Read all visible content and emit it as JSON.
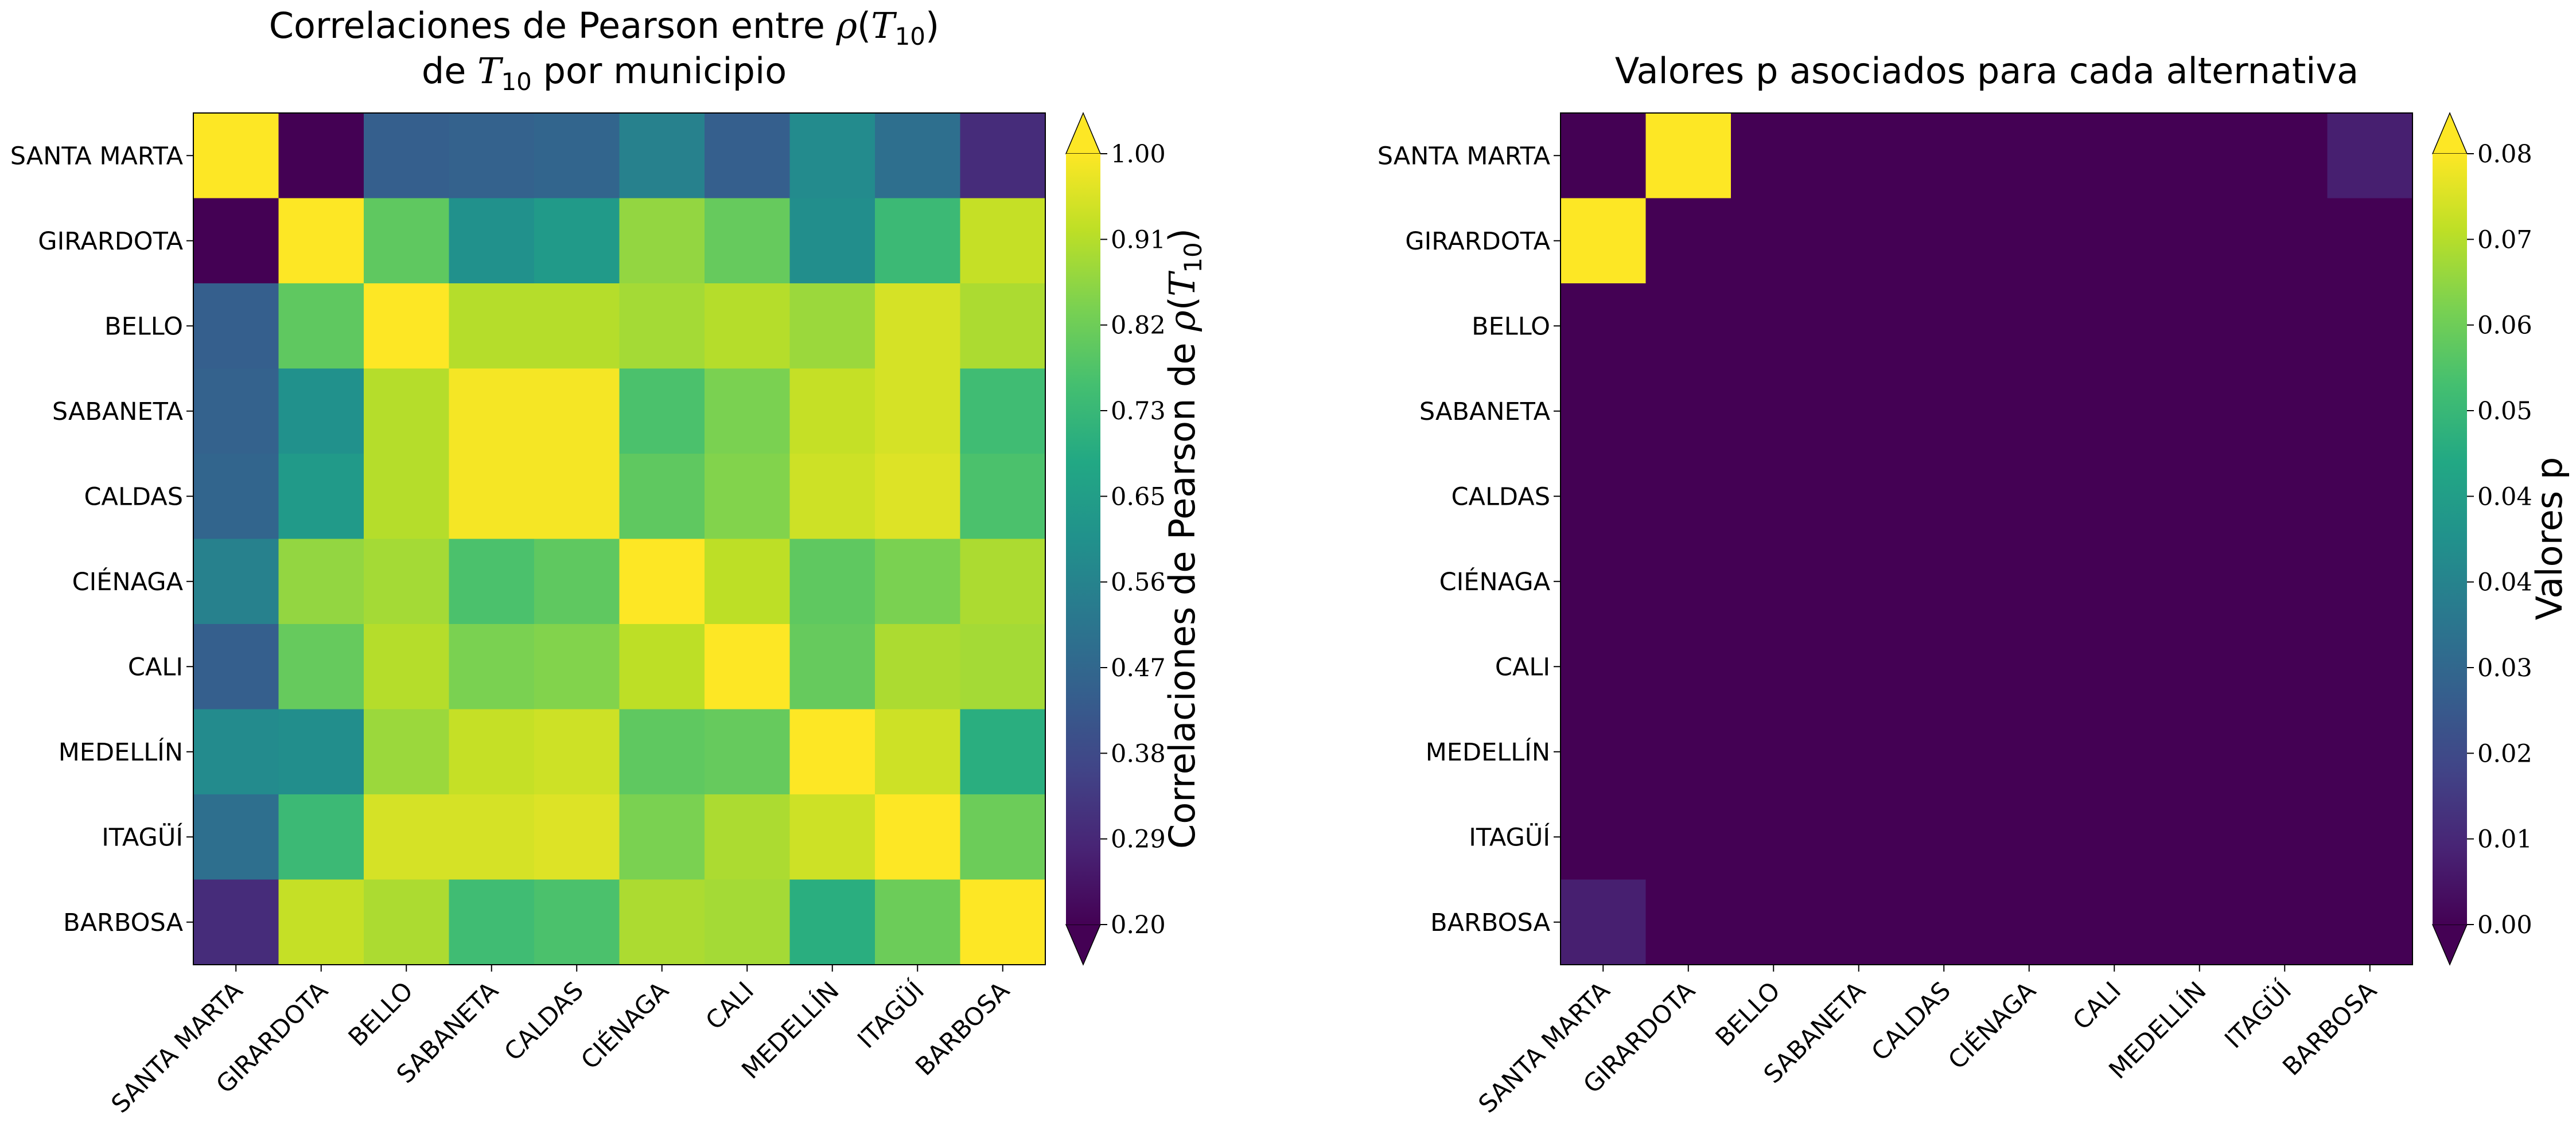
{
  "chart_data": [
    {
      "type": "heatmap",
      "title": {
        "line1_text": "Correlaciones de Pearson entre ",
        "line1_math_symbol": "ρ",
        "line1_math_open": "(",
        "line1_math_var": "T",
        "line1_math_sub": "10",
        "line1_math_close": ")",
        "line2_pre": "de ",
        "line2_math_var": "T",
        "line2_math_sub": "10",
        "line2_post": " por municipio"
      },
      "rows": [
        "SANTA MARTA",
        "GIRARDOTA",
        "BELLO",
        "SABANETA",
        "CALDAS",
        "CIÉNAGA",
        "CALI",
        "MEDELLÍN",
        "ITAGÜÍ",
        "BARBOSA"
      ],
      "columns": [
        "SANTA MARTA",
        "GIRARDOTA",
        "BELLO",
        "SABANETA",
        "CALDAS",
        "CIÉNAGA",
        "CALI",
        "MEDELLÍN",
        "ITAGÜÍ",
        "BARBOSA"
      ],
      "values": [
        [
          1.0,
          0.2,
          0.44,
          0.45,
          0.46,
          0.55,
          0.44,
          0.58,
          0.49,
          0.3
        ],
        [
          0.2,
          1.0,
          0.8,
          0.6,
          0.63,
          0.87,
          0.81,
          0.59,
          0.74,
          0.93
        ],
        [
          0.44,
          0.8,
          1.0,
          0.91,
          0.91,
          0.89,
          0.91,
          0.88,
          0.95,
          0.9
        ],
        [
          0.45,
          0.6,
          0.91,
          0.99,
          0.99,
          0.77,
          0.84,
          0.93,
          0.95,
          0.75
        ],
        [
          0.46,
          0.63,
          0.91,
          0.99,
          0.99,
          0.8,
          0.85,
          0.94,
          0.96,
          0.77
        ],
        [
          0.55,
          0.87,
          0.89,
          0.77,
          0.8,
          1.0,
          0.92,
          0.8,
          0.84,
          0.9
        ],
        [
          0.44,
          0.81,
          0.91,
          0.84,
          0.85,
          0.92,
          1.0,
          0.81,
          0.9,
          0.89
        ],
        [
          0.58,
          0.59,
          0.88,
          0.93,
          0.94,
          0.8,
          0.81,
          1.0,
          0.94,
          0.7
        ],
        [
          0.49,
          0.74,
          0.95,
          0.95,
          0.96,
          0.84,
          0.9,
          0.94,
          1.0,
          0.82
        ],
        [
          0.3,
          0.93,
          0.9,
          0.75,
          0.77,
          0.9,
          0.89,
          0.7,
          0.82,
          1.0
        ]
      ],
      "colormap": "viridis",
      "vmin": 0.2,
      "vmax": 1.0,
      "colorbar": {
        "ticks": [
          "1.00",
          "0.91",
          "0.82",
          "0.73",
          "0.65",
          "0.56",
          "0.47",
          "0.38",
          "0.29",
          "0.20"
        ],
        "label_pre": "Correlaciones de Pearson de ",
        "label_math_symbol": "ρ",
        "label_math_open": "(",
        "label_math_var": "T",
        "label_math_sub": "10",
        "label_math_close": ")",
        "extend": "both"
      }
    },
    {
      "type": "heatmap",
      "title": "Valores p asociados para cada alternativa",
      "rows": [
        "SANTA MARTA",
        "GIRARDOTA",
        "BELLO",
        "SABANETA",
        "CALDAS",
        "CIÉNAGA",
        "CALI",
        "MEDELLÍN",
        "ITAGÜÍ",
        "BARBOSA"
      ],
      "columns": [
        "SANTA MARTA",
        "GIRARDOTA",
        "BELLO",
        "SABANETA",
        "CALDAS",
        "CIÉNAGA",
        "CALI",
        "MEDELLÍN",
        "ITAGÜÍ",
        "BARBOSA"
      ],
      "values": [
        [
          0.0,
          0.082,
          0.0,
          0.0,
          0.0,
          0.0,
          0.0,
          0.0,
          0.0,
          0.007
        ],
        [
          0.082,
          0.0,
          0.0,
          0.0,
          0.0,
          0.0,
          0.0,
          0.0,
          0.0,
          0.0
        ],
        [
          0.0,
          0.0,
          0.0,
          0.0,
          0.0,
          0.0,
          0.0,
          0.0,
          0.0,
          0.0
        ],
        [
          0.0,
          0.0,
          0.0,
          0.0,
          0.0,
          0.0,
          0.0,
          0.0,
          0.0,
          0.0
        ],
        [
          0.0,
          0.0,
          0.0,
          0.0,
          0.0,
          0.0,
          0.0,
          0.0,
          0.0,
          0.0
        ],
        [
          0.0,
          0.0,
          0.0,
          0.0,
          0.0,
          0.0,
          0.0,
          0.0,
          0.0,
          0.0
        ],
        [
          0.0,
          0.0,
          0.0,
          0.0,
          0.0,
          0.0,
          0.0,
          0.0,
          0.0,
          0.0
        ],
        [
          0.0,
          0.0,
          0.0,
          0.0,
          0.0,
          0.0,
          0.0,
          0.0,
          0.0,
          0.0
        ],
        [
          0.0,
          0.0,
          0.0,
          0.0,
          0.0,
          0.0,
          0.0,
          0.0,
          0.0,
          0.0
        ],
        [
          0.007,
          0.0,
          0.0,
          0.0,
          0.0,
          0.0,
          0.0,
          0.0,
          0.0,
          0.0
        ]
      ],
      "colormap": "viridis",
      "vmin": 0.0,
      "vmax": 0.082,
      "colorbar": {
        "ticks": [
          "0.08",
          "0.07",
          "0.06",
          "0.05",
          "0.04",
          "0.04",
          "0.03",
          "0.02",
          "0.01",
          "0.00"
        ],
        "label": "Valores p",
        "extend": "both"
      }
    }
  ]
}
